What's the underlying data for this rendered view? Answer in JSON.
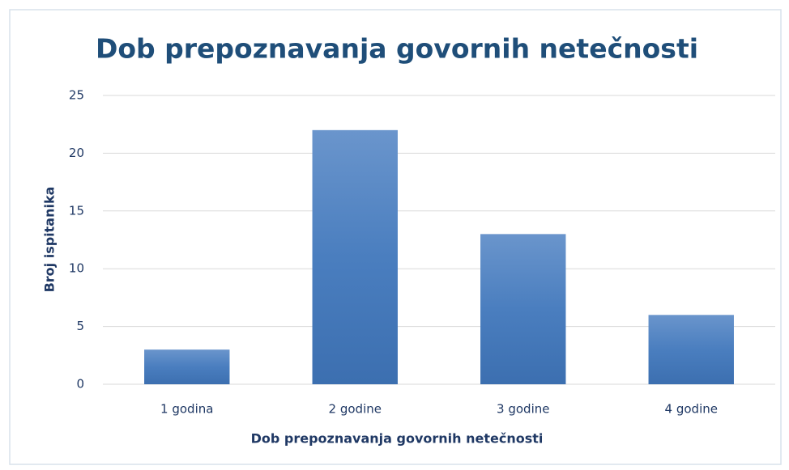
{
  "chart_data": {
    "type": "bar",
    "title": "Dob prepoznavanja govornih netečnosti",
    "x_label": "Dob prepoznavanja govornih netečnosti",
    "y_label": "Broj ispitanika",
    "categories": [
      "1 godina",
      "2 godine",
      "3 godine",
      "4 godine"
    ],
    "values": [
      3,
      22,
      13,
      6
    ],
    "color": "#4a7ebf",
    "ylim": [
      0,
      25
    ],
    "yticks": [
      0,
      5,
      10,
      15,
      20,
      25
    ],
    "grid": true
  }
}
